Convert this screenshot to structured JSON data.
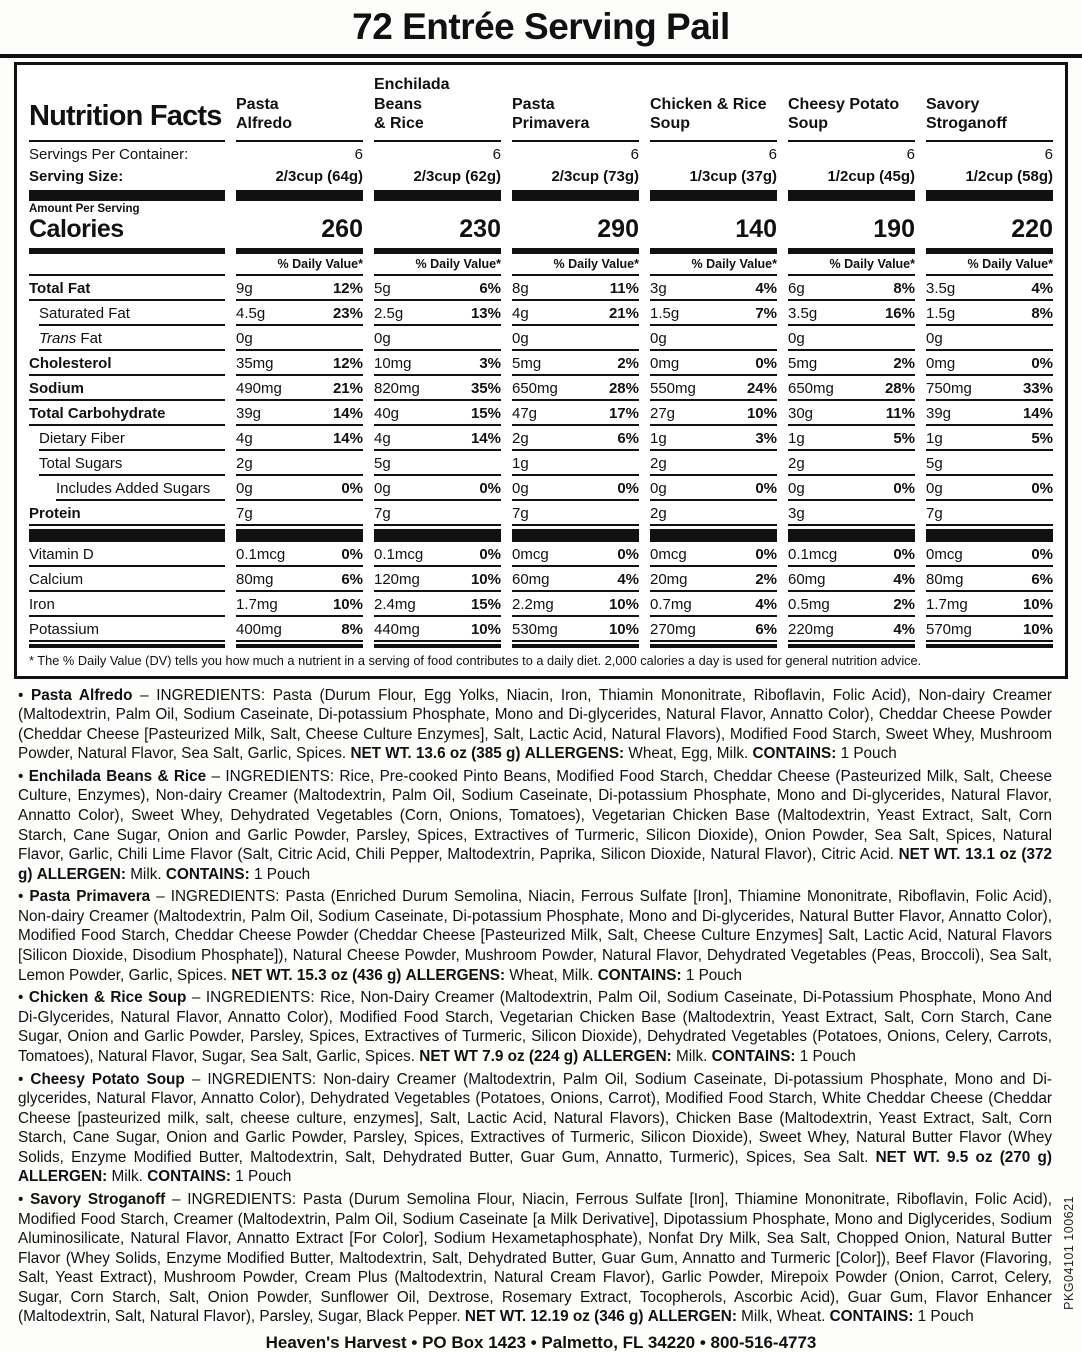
{
  "page": {
    "title": "72 Entrée Serving Pail",
    "footer": "Heaven's Harvest • PO Box 1423 • Palmetto, FL 34220 • 800-516-4773",
    "side_code": "PKG04101 100621"
  },
  "nutrition_panel": {
    "heading": "Nutrition Facts",
    "servings_label": "Servings Per Container:",
    "serving_size_label": "Serving Size:",
    "amount_label": "Amount Per Serving",
    "calories_label": "Calories",
    "daily_value_label": "% Daily Value*",
    "footnote": "* The % Daily Value (DV) tells you how much a nutrient in a serving of food contributes to a daily diet. 2,000 calories a day is used for general nutrition advice.",
    "products": [
      {
        "name": "Pasta\nAlfredo",
        "servings": "6",
        "serving_size": "2/3cup (64g)",
        "calories": "260"
      },
      {
        "name": "Enchilada Beans\n& Rice",
        "servings": "6",
        "serving_size": "2/3cup (62g)",
        "calories": "230"
      },
      {
        "name": "Pasta\nPrimavera",
        "servings": "6",
        "serving_size": "2/3cup (73g)",
        "calories": "290"
      },
      {
        "name": "Chicken & Rice\nSoup",
        "servings": "6",
        "serving_size": "1/3cup (37g)",
        "calories": "140"
      },
      {
        "name": "Cheesy Potato\nSoup",
        "servings": "6",
        "serving_size": "1/2cup (45g)",
        "calories": "190"
      },
      {
        "name": "Savory\nStroganoff",
        "servings": "6",
        "serving_size": "1/2cup (58g)",
        "calories": "220"
      }
    ],
    "nutrients": [
      {
        "label": "Total Fat",
        "bold": true,
        "indent": 0,
        "values": [
          [
            "9g",
            "12%"
          ],
          [
            "5g",
            "6%"
          ],
          [
            "8g",
            "11%"
          ],
          [
            "3g",
            "4%"
          ],
          [
            "6g",
            "8%"
          ],
          [
            "3.5g",
            "4%"
          ]
        ]
      },
      {
        "label": "Saturated Fat",
        "bold": false,
        "indent": 1,
        "values": [
          [
            "4.5g",
            "23%"
          ],
          [
            "2.5g",
            "13%"
          ],
          [
            "4g",
            "21%"
          ],
          [
            "1.5g",
            "7%"
          ],
          [
            "3.5g",
            "16%"
          ],
          [
            "1.5g",
            "8%"
          ]
        ]
      },
      {
        "label": "Trans Fat",
        "bold": false,
        "indent": 1,
        "italic_first": true,
        "values": [
          [
            "0g",
            ""
          ],
          [
            "0g",
            ""
          ],
          [
            "0g",
            ""
          ],
          [
            "0g",
            ""
          ],
          [
            "0g",
            ""
          ],
          [
            "0g",
            ""
          ]
        ]
      },
      {
        "label": "Cholesterol",
        "bold": true,
        "indent": 0,
        "values": [
          [
            "35mg",
            "12%"
          ],
          [
            "10mg",
            "3%"
          ],
          [
            "5mg",
            "2%"
          ],
          [
            "0mg",
            "0%"
          ],
          [
            "5mg",
            "2%"
          ],
          [
            "0mg",
            "0%"
          ]
        ]
      },
      {
        "label": "Sodium",
        "bold": true,
        "indent": 0,
        "values": [
          [
            "490mg",
            "21%"
          ],
          [
            "820mg",
            "35%"
          ],
          [
            "650mg",
            "28%"
          ],
          [
            "550mg",
            "24%"
          ],
          [
            "650mg",
            "28%"
          ],
          [
            "750mg",
            "33%"
          ]
        ]
      },
      {
        "label": "Total Carbohydrate",
        "bold": true,
        "indent": 0,
        "values": [
          [
            "39g",
            "14%"
          ],
          [
            "40g",
            "15%"
          ],
          [
            "47g",
            "17%"
          ],
          [
            "27g",
            "10%"
          ],
          [
            "30g",
            "11%"
          ],
          [
            "39g",
            "14%"
          ]
        ]
      },
      {
        "label": "Dietary Fiber",
        "bold": false,
        "indent": 1,
        "values": [
          [
            "4g",
            "14%"
          ],
          [
            "4g",
            "14%"
          ],
          [
            "2g",
            "6%"
          ],
          [
            "1g",
            "3%"
          ],
          [
            "1g",
            "5%"
          ],
          [
            "1g",
            "5%"
          ]
        ]
      },
      {
        "label": "Total Sugars",
        "bold": false,
        "indent": 1,
        "values": [
          [
            "2g",
            ""
          ],
          [
            "5g",
            ""
          ],
          [
            "1g",
            ""
          ],
          [
            "2g",
            ""
          ],
          [
            "2g",
            ""
          ],
          [
            "5g",
            ""
          ]
        ]
      },
      {
        "label": "Includes Added Sugars",
        "bold": false,
        "indent": 2,
        "values": [
          [
            "0g",
            "0%"
          ],
          [
            "0g",
            "0%"
          ],
          [
            "0g",
            "0%"
          ],
          [
            "0g",
            "0%"
          ],
          [
            "0g",
            "0%"
          ],
          [
            "0g",
            "0%"
          ]
        ]
      },
      {
        "label": "Protein",
        "bold": true,
        "indent": 0,
        "values": [
          [
            "7g",
            ""
          ],
          [
            "7g",
            ""
          ],
          [
            "7g",
            ""
          ],
          [
            "2g",
            ""
          ],
          [
            "3g",
            ""
          ],
          [
            "7g",
            ""
          ]
        ]
      }
    ],
    "vitamins": [
      {
        "label": "Vitamin D",
        "values": [
          [
            "0.1mcg",
            "0%"
          ],
          [
            "0.1mcg",
            "0%"
          ],
          [
            "0mcg",
            "0%"
          ],
          [
            "0mcg",
            "0%"
          ],
          [
            "0.1mcg",
            "0%"
          ],
          [
            "0mcg",
            "0%"
          ]
        ]
      },
      {
        "label": "Calcium",
        "values": [
          [
            "80mg",
            "6%"
          ],
          [
            "120mg",
            "10%"
          ],
          [
            "60mg",
            "4%"
          ],
          [
            "20mg",
            "2%"
          ],
          [
            "60mg",
            "4%"
          ],
          [
            "80mg",
            "6%"
          ]
        ]
      },
      {
        "label": "Iron",
        "values": [
          [
            "1.7mg",
            "10%"
          ],
          [
            "2.4mg",
            "15%"
          ],
          [
            "2.2mg",
            "10%"
          ],
          [
            "0.7mg",
            "4%"
          ],
          [
            "0.5mg",
            "2%"
          ],
          [
            "1.7mg",
            "10%"
          ]
        ]
      },
      {
        "label": "Potassium",
        "values": [
          [
            "400mg",
            "8%"
          ],
          [
            "440mg",
            "10%"
          ],
          [
            "530mg",
            "10%"
          ],
          [
            "270mg",
            "6%"
          ],
          [
            "220mg",
            "4%"
          ],
          [
            "570mg",
            "10%"
          ]
        ]
      }
    ]
  },
  "ingredients": [
    {
      "name": "Pasta Alfredo",
      "segments": [
        [
          "– INGREDIENTS: Pasta (Durum Flour, Egg Yolks, Niacin, Iron, Thiamin Mononitrate, Riboflavin, Folic Acid), Non-dairy Creamer (Maltodextrin, Palm Oil, Sodium Caseinate, Di-potassium Phosphate, Mono and Di-glycerides, Natural Flavor, Annatto Color), Cheddar Cheese Powder (Cheddar Cheese [Pasteurized Milk, Salt, Cheese Culture Enzymes], Salt, Lactic Acid, Natural Flavors), Modified Food Starch, Sweet Whey, Mushroom Powder, Natural Flavor, Sea Salt, Garlic, Spices.",
          false
        ],
        [
          "NET WT. 13.6 oz (385 g)",
          true
        ],
        [
          "ALLERGENS:",
          true
        ],
        [
          "Wheat, Egg, Milk.",
          false
        ],
        [
          "CONTAINS:",
          true
        ],
        [
          "1 Pouch",
          false
        ]
      ]
    },
    {
      "name": "Enchilada Beans & Rice",
      "segments": [
        [
          "– INGREDIENTS: Rice, Pre-cooked Pinto Beans, Modified Food Starch,  Cheddar Cheese (Pasteurized Milk, Salt, Cheese Culture, Enzymes), Non-dairy Creamer (Maltodextrin, Palm Oil, Sodium Caseinate, Di-potassium Phosphate, Mono and Di-glycerides, Natural Flavor, Annatto Color), Sweet Whey, Dehydrated Vegetables (Corn, Onions, Tomatoes), Vegetarian Chicken Base (Maltodextrin, Yeast Extract, Salt, Corn Starch, Cane Sugar, Onion and Garlic Powder, Parsley, Spices, Extractives of Turmeric, Silicon Dioxide), Onion Powder, Sea Salt, Spices, Natural Flavor, Garlic, Chili Lime Flavor (Salt, Citric Acid, Chili Pepper, Maltodextrin, Paprika, Silicon Dioxide, Natural Flavor), Citric Acid.",
          false
        ],
        [
          "NET WT. 13.1 oz (372 g)",
          true
        ],
        [
          "ALLERGEN:",
          true
        ],
        [
          "Milk.",
          false
        ],
        [
          "CONTAINS:",
          true
        ],
        [
          "1 Pouch",
          false
        ]
      ]
    },
    {
      "name": "Pasta Primavera",
      "segments": [
        [
          "– INGREDIENTS: Pasta (Enriched Durum Semolina, Niacin, Ferrous Sulfate [Iron], Thiamine Mononitrate, Riboflavin, Folic Acid), Non-dairy Creamer (Maltodextrin, Palm Oil, Sodium Caseinate, Di-potassium Phosphate, Mono and Di-glycerides, Natural Butter Flavor, Annatto Color), Modified Food Starch, Cheddar Cheese Powder (Cheddar Cheese [Pasteurized Milk, Salt, Cheese Culture Enzymes] Salt, Lactic Acid, Natural Flavors [Silicon Dioxide, Disodium Phosphate]), Natural Cheese Powder, Mushroom Powder, Natural Flavor, Dehydrated Vegetables (Peas, Broccoli), Sea Salt, Lemon Powder, Garlic, Spices.",
          false
        ],
        [
          "NET WT. 15.3 oz (436 g)",
          true
        ],
        [
          "ALLERGENS:",
          true
        ],
        [
          "Wheat, Milk.",
          false
        ],
        [
          "CONTAINS:",
          true
        ],
        [
          "1 Pouch",
          false
        ]
      ]
    },
    {
      "name": "Chicken & Rice Soup",
      "segments": [
        [
          "– INGREDIENTS: Rice, Non-Dairy Creamer (Maltodextrin, Palm Oil, Sodium Caseinate, Di-Potassium Phosphate, Mono And Di-Glycerides, Natural Flavor, Annatto Color), Modified Food Starch, Vegetarian Chicken Base (Maltodextrin, Yeast Extract, Salt, Corn Starch, Cane Sugar, Onion and Garlic Powder, Parsley, Spices, Extractives of Turmeric, Silicon Dioxide), Dehydrated Vegetables (Potatoes, Onions, Celery, Carrots, Tomatoes), Natural Flavor, Sugar, Sea Salt, Garlic, Spices.",
          false
        ],
        [
          "NET WT 7.9 oz (224 g)",
          true
        ],
        [
          "ALLERGEN:",
          true
        ],
        [
          "Milk.",
          false
        ],
        [
          "CONTAINS:",
          true
        ],
        [
          "1 Pouch",
          false
        ]
      ]
    },
    {
      "name": "Cheesy Potato Soup",
      "segments": [
        [
          "– INGREDIENTS: Non-dairy Creamer (Maltodextrin, Palm Oil, Sodium Caseinate, Di-potassium Phosphate, Mono and Di-glycerides, Natural Flavor, Annatto Color), Dehydrated Vegetables (Potatoes, Onions, Carrot), Modified Food Starch, White Cheddar Cheese (Cheddar Cheese [pasteurized milk, salt, cheese culture, enzymes], Salt, Lactic Acid, Natural Flavors), Chicken Base (Maltodextrin, Yeast Extract, Salt, Corn Starch, Cane Sugar, Onion and Garlic Powder, Parsley, Spices, Extractives of Turmeric, Silicon Dioxide), Sweet Whey, Natural Butter Flavor (Whey Solids, Enzyme Modified Butter, Maltodextrin, Salt, Dehydrated Butter, Guar Gum, Annatto, Turmeric), Spices, Sea Salt.",
          false
        ],
        [
          "NET WT. 9.5 oz (270 g)",
          true
        ],
        [
          "ALLERGEN:",
          true
        ],
        [
          "Milk.",
          false
        ],
        [
          "CONTAINS:",
          true
        ],
        [
          "1 Pouch",
          false
        ]
      ]
    },
    {
      "name": "Savory Stroganoff",
      "segments": [
        [
          "– INGREDIENTS: Pasta (Durum Semolina Flour, Niacin, Ferrous Sulfate [Iron], Thiamine Mononitrate, Riboflavin, Folic Acid), Modified Food Starch, Creamer (Maltodextrin, Palm Oil, Sodium Caseinate [a Milk Derivative], Dipotassium Phosphate, Mono and Diglycerides, Sodium Aluminosilicate, Natural Flavor, Annatto Extract [For Color], Sodium Hexametaphosphate), Nonfat Dry Milk, Sea Salt, Chopped Onion, Natural Butter Flavor (Whey Solids, Enzyme Modified Butter, Maltodextrin, Salt, Dehydrated Butter, Guar Gum, Annatto and Turmeric [Color]), Beef Flavor (Flavoring, Salt, Yeast Extract), Mushroom Powder, Cream Plus (Maltodextrin, Natural Cream Flavor), Garlic Powder, Mirepoix Powder (Onion, Carrot, Celery, Sugar, Corn Starch, Salt, Onion Powder, Sunflower Oil, Dextrose, Rosemary Extract, Tocopherols, Ascorbic Acid), Guar Gum, Flavor Enhancer (Maltodextrin, Salt, Natural Flavor), Parsley, Sugar, Black Pepper.",
          false
        ],
        [
          "NET WT. 12.19 oz (346 g)",
          true
        ],
        [
          "ALLERGEN:",
          true
        ],
        [
          "Milk, Wheat.",
          false
        ],
        [
          "CONTAINS:",
          true
        ],
        [
          "1 Pouch",
          false
        ]
      ]
    }
  ]
}
